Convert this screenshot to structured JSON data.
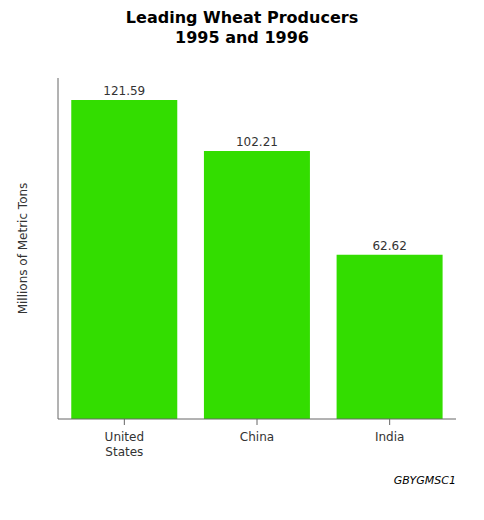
{
  "chart_data": {
    "type": "bar",
    "title": "Leading Wheat Producers\n1995 and 1996",
    "ylabel": "Millions of Metric Tons",
    "annotations": [
      "GBYGMSC1"
    ],
    "categories": [
      "United\nStates",
      "China",
      "India"
    ],
    "values": [
      121.59,
      102.21,
      62.62
    ],
    "color": "#33dd00",
    "ylim": [
      0,
      130
    ],
    "data_labels": true,
    "tick_labels": "x",
    "grid": false
  }
}
